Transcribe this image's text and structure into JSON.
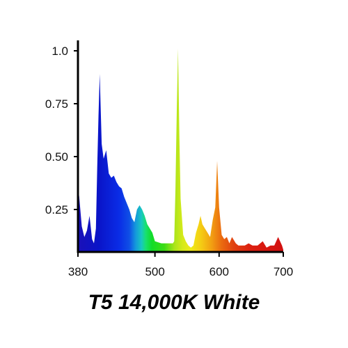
{
  "chart_data": {
    "type": "area",
    "title": "T5 14,000K White",
    "xlabel": "",
    "ylabel": "",
    "xlim": [
      380,
      700
    ],
    "ylim": [
      0.05,
      1.05
    ],
    "x_ticks": [
      380,
      500,
      600,
      700
    ],
    "x_tick_labels": [
      "380",
      "500",
      "600",
      "700"
    ],
    "y_ticks": [
      0.25,
      0.5,
      0.75,
      1.0
    ],
    "y_tick_labels": [
      "0.25",
      "0.50",
      "0.75",
      "1.0"
    ],
    "grid": false,
    "fill": "visible-spectrum gradient (violet at 380 nm to red at 700 nm)",
    "series": [
      {
        "x": [
          380,
          382,
          386,
          390,
          394,
          398,
          402,
          405,
          408,
          410,
          412,
          414,
          417,
          420,
          424,
          428,
          432,
          436,
          440,
          444,
          448,
          452,
          456,
          460,
          464,
          468,
          472,
          476,
          480,
          484,
          488,
          492,
          496,
          500,
          510,
          520,
          528,
          530,
          532,
          534,
          536,
          538,
          540,
          544,
          548,
          552,
          556,
          560,
          564,
          568,
          571,
          574,
          578,
          582,
          586,
          590,
          594,
          597,
          600,
          604,
          608,
          612,
          616,
          620,
          626,
          630,
          636,
          640,
          646,
          652,
          660,
          668,
          674,
          680,
          686,
          692,
          698,
          700
        ],
        "y": [
          0.36,
          0.31,
          0.17,
          0.12,
          0.15,
          0.22,
          0.11,
          0.09,
          0.16,
          0.45,
          0.69,
          0.89,
          0.56,
          0.49,
          0.53,
          0.42,
          0.4,
          0.41,
          0.38,
          0.36,
          0.35,
          0.31,
          0.28,
          0.25,
          0.21,
          0.19,
          0.25,
          0.27,
          0.25,
          0.22,
          0.18,
          0.16,
          0.14,
          0.1,
          0.09,
          0.09,
          0.09,
          0.1,
          0.35,
          0.72,
          1.01,
          0.6,
          0.3,
          0.13,
          0.1,
          0.08,
          0.07,
          0.08,
          0.14,
          0.18,
          0.22,
          0.18,
          0.16,
          0.14,
          0.12,
          0.2,
          0.26,
          0.48,
          0.26,
          0.13,
          0.11,
          0.12,
          0.09,
          0.12,
          0.09,
          0.08,
          0.08,
          0.08,
          0.09,
          0.08,
          0.08,
          0.1,
          0.07,
          0.08,
          0.08,
          0.12,
          0.08,
          0.06
        ]
      }
    ]
  }
}
